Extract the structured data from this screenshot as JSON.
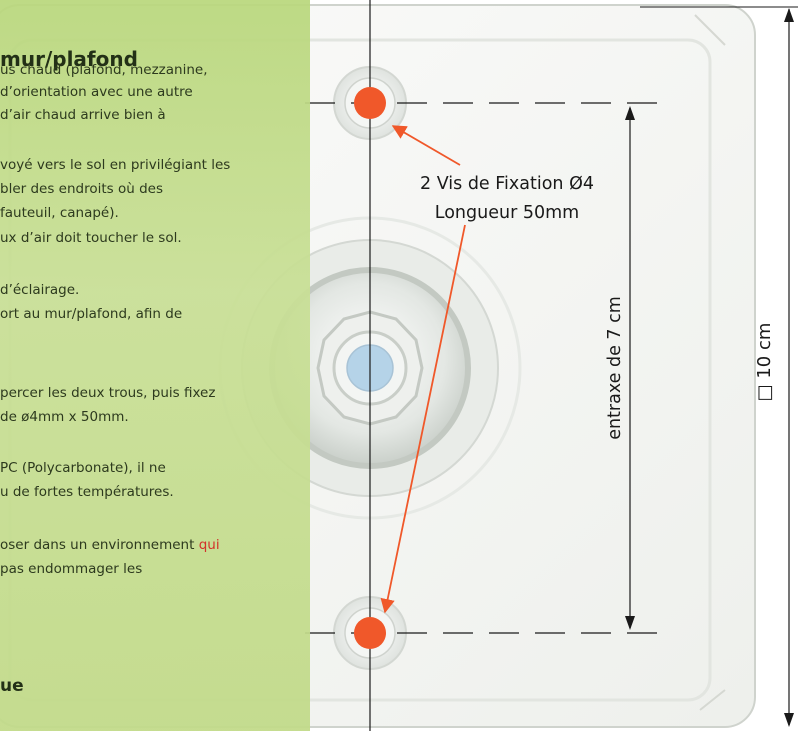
{
  "panel": {
    "title": "mur/plafond",
    "lines": [
      "us chaud (plafond, mezzanine,",
      "d’orientation avec une autre",
      "d’air chaud arrive bien à",
      "",
      "voyé vers le sol en privilégiant les",
      "bler des endroits où des",
      "fauteuil, canapé).",
      "ux d’air doit toucher le sol.",
      "",
      "d’éclairage.",
      "ort au mur/plafond, afin de",
      "",
      "",
      "percer les deux trous, puis fixez",
      "de ø4mm x 50mm.",
      "",
      "PC (Polycarbonate), il ne",
      "u de fortes températures.",
      "",
      "oser dans un environnement",
      "pas endommager les"
    ],
    "highlight_word": "qui",
    "footer": "ue"
  },
  "diagram": {
    "screw_label_line1": "2 Vis de Fixation Ø4",
    "screw_label_line2": "Longueur 50mm",
    "spacing_label": "entraxe de 7 cm",
    "size_label": "□ 10 cm",
    "accent_color": "#f0582a",
    "line_color": "#1a1a1a",
    "panel_color": "#bcd881"
  }
}
